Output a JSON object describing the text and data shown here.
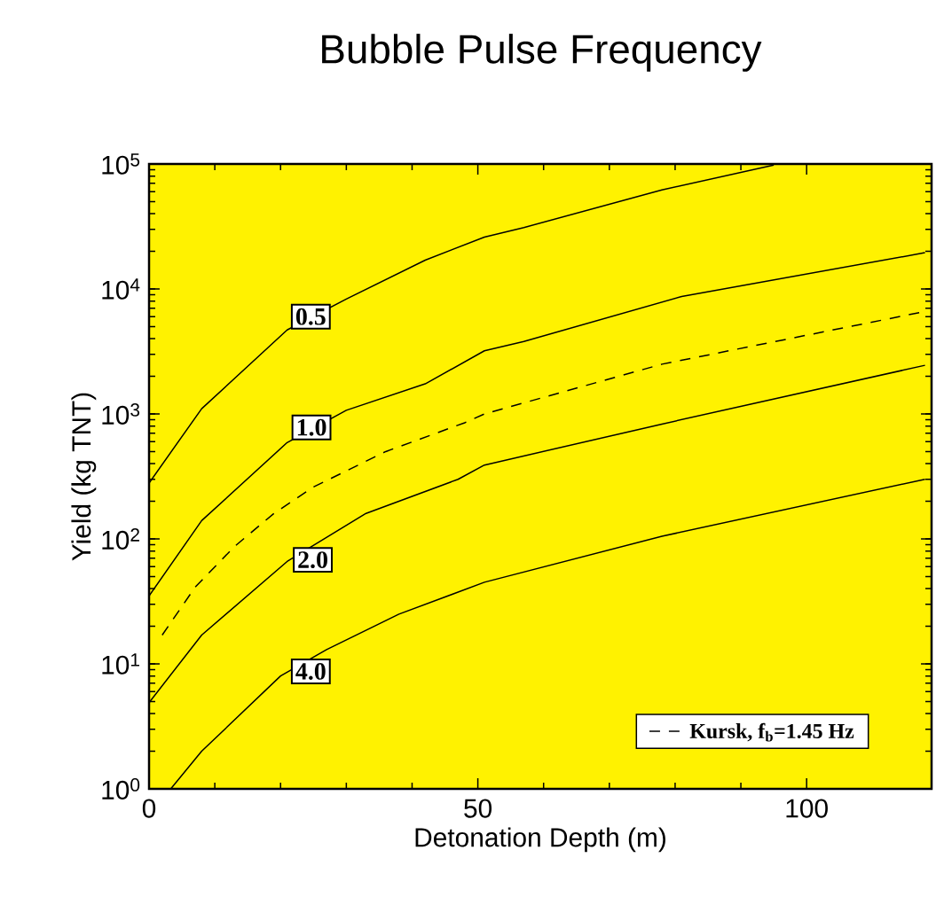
{
  "chart_data": {
    "type": "line",
    "title": "Bubble Pulse Frequency",
    "xlabel": "Detonation Depth (m)",
    "ylabel": "Yield (kg TNT)",
    "xlim": [
      0,
      119
    ],
    "xticks": [
      0,
      50,
      100
    ],
    "ylim": [
      1,
      100000
    ],
    "log": "y",
    "yticks": [
      {
        "value": 1,
        "label": "10$^{0}$"
      },
      {
        "value": 10,
        "label": "10$^{1}$"
      },
      {
        "value": 100,
        "label": "10$^{2}$"
      },
      {
        "value": 1000,
        "label": "10$^{3}$"
      },
      {
        "value": 10000,
        "label": "10$^{4}$"
      },
      {
        "value": 100000,
        "label": "10$^{5}$"
      }
    ],
    "legend": "bottom right",
    "series": [
      {
        "color": "#000000",
        "line_style": "solid",
        "x": [
          0,
          8,
          21,
          30,
          42,
          51,
          57,
          78,
          95
        ],
        "values": [
          280,
          1100,
          4700,
          8300,
          17000,
          26000,
          31000,
          62000,
          98000
        ]
      },
      {
        "color": "#000000",
        "line_style": "solid",
        "x": [
          0,
          8,
          21,
          30,
          42,
          51,
          57,
          81,
          118
        ],
        "values": [
          35,
          140,
          590,
          1070,
          1740,
          3200,
          3800,
          8700,
          19500
        ]
      },
      {
        "name": "Kursk, f$_{b}$=1.45 Hz",
        "color": "#000000",
        "line_style": "dashed",
        "x": [
          2,
          7,
          13,
          19,
          25,
          36,
          48,
          51,
          78,
          118
        ],
        "values": [
          17,
          41,
          87,
          160,
          260,
          500,
          850,
          1000,
          2500,
          6600
        ]
      },
      {
        "color": "#000000",
        "line_style": "solid",
        "x": [
          0,
          8,
          21,
          33,
          47,
          51,
          78,
          118
        ],
        "values": [
          4.9,
          17,
          66,
          160,
          300,
          390,
          830,
          2450
        ]
      },
      {
        "color": "#000000",
        "line_style": "solid",
        "x": [
          3.3,
          8,
          20,
          27,
          38,
          51,
          78,
          118
        ],
        "values": [
          1,
          2,
          8,
          13,
          25,
          45,
          105,
          300
        ]
      }
    ],
    "annotations": [
      {
        "text": "0.5",
        "x": 24.6,
        "y": 6000
      },
      {
        "text": "1.0",
        "x": 24.7,
        "y": 780
      },
      {
        "text": "2.0",
        "x": 24.9,
        "y": 68
      },
      {
        "text": "4.0",
        "x": 24.6,
        "y": 8.7
      }
    ]
  }
}
